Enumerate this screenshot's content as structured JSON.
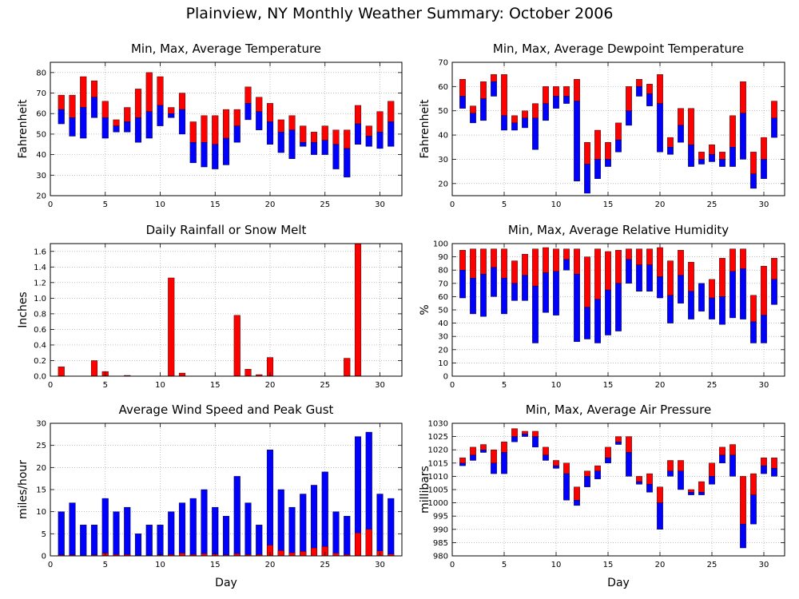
{
  "title": "Plainview, NY Monthly Weather Summary: October 2006",
  "colors": {
    "max_bar": "#ff0000",
    "min_bar": "#0000ff",
    "outline": "#000000"
  },
  "chart_data": [
    {
      "type": "bar",
      "subtype": "floating-range",
      "title": "Min, Max, Average Temperature",
      "xlabel": "",
      "ylabel": "Fahrenheit",
      "xlim": [
        0,
        32
      ],
      "ylim": [
        20,
        85
      ],
      "xticks": [
        0,
        5,
        10,
        15,
        20,
        25,
        30
      ],
      "yticks": [
        20,
        30,
        40,
        50,
        60,
        70,
        80
      ],
      "grid": true,
      "x": [
        1,
        2,
        3,
        4,
        5,
        6,
        7,
        8,
        9,
        10,
        11,
        12,
        13,
        14,
        15,
        16,
        17,
        18,
        19,
        20,
        21,
        22,
        23,
        24,
        25,
        26,
        27,
        28,
        29,
        30,
        31
      ],
      "max": [
        69,
        69,
        78,
        76,
        66,
        57,
        63,
        72,
        80,
        78,
        63,
        70,
        56,
        59,
        59,
        62,
        62,
        73,
        68,
        65,
        57,
        59,
        54,
        51,
        54,
        52,
        52,
        64,
        54,
        61,
        66
      ],
      "avg": [
        62,
        58,
        63,
        68,
        58,
        54,
        56,
        58,
        61,
        64,
        60,
        62,
        46,
        46,
        45,
        48,
        54,
        65,
        61,
        56,
        51,
        52,
        46,
        46,
        47,
        45,
        43,
        55,
        49,
        51,
        56
      ],
      "min": [
        55,
        49,
        48,
        58,
        48,
        51,
        51,
        46,
        48,
        54,
        58,
        50,
        36,
        34,
        33,
        35,
        46,
        57,
        52,
        45,
        41,
        38,
        44,
        40,
        40,
        33,
        29,
        45,
        44,
        43,
        44
      ]
    },
    {
      "type": "bar",
      "subtype": "floating-range",
      "title": "Min, Max, Average Dewpoint Temperature",
      "xlabel": "",
      "ylabel": "Fahrenheit",
      "xlim": [
        0,
        32
      ],
      "ylim": [
        15,
        70
      ],
      "xticks": [
        0,
        5,
        10,
        15,
        20,
        25,
        30
      ],
      "yticks": [
        20,
        30,
        40,
        50,
        60,
        70
      ],
      "grid": true,
      "x": [
        1,
        2,
        3,
        4,
        5,
        6,
        7,
        8,
        9,
        10,
        11,
        12,
        13,
        14,
        15,
        16,
        17,
        18,
        19,
        20,
        21,
        22,
        23,
        24,
        25,
        26,
        27,
        28,
        29,
        30,
        31
      ],
      "max": [
        63,
        52,
        62,
        65,
        65,
        48,
        50,
        53,
        60,
        60,
        60,
        63,
        37,
        42,
        37,
        45,
        60,
        63,
        61,
        65,
        39,
        51,
        51,
        33,
        36,
        33,
        48,
        62,
        33,
        39,
        54
      ],
      "avg": [
        56,
        49,
        55,
        62,
        48,
        45,
        47,
        47,
        53,
        56,
        56,
        54,
        28,
        30,
        30,
        38,
        50,
        60,
        57,
        53,
        35,
        44,
        36,
        30,
        32,
        30,
        35,
        49,
        24,
        30,
        47
      ],
      "min": [
        51,
        45,
        46,
        56,
        42,
        42,
        43,
        34,
        46,
        51,
        53,
        21,
        16,
        22,
        27,
        33,
        44,
        56,
        52,
        33,
        32,
        37,
        27,
        28,
        29,
        27,
        27,
        30,
        18,
        22,
        39
      ]
    },
    {
      "type": "bar",
      "title": "Daily Rainfall or Snow Melt",
      "xlabel": "",
      "ylabel": "Inches",
      "xlim": [
        0,
        32
      ],
      "ylim": [
        0,
        1.7
      ],
      "xticks": [
        0,
        5,
        10,
        15,
        20,
        25,
        30
      ],
      "yticks": [
        0,
        0.2,
        0.4,
        0.6,
        0.8,
        1.0,
        1.2,
        1.4,
        1.6
      ],
      "ytick_labels": [
        "0.0",
        "0.2",
        "0.4",
        "0.6",
        "0.8",
        "1.0",
        "1.2",
        "1.4",
        "1.6"
      ],
      "grid": true,
      "x": [
        1,
        2,
        3,
        4,
        5,
        6,
        7,
        8,
        9,
        10,
        11,
        12,
        13,
        14,
        15,
        16,
        17,
        18,
        19,
        20,
        21,
        22,
        23,
        24,
        25,
        26,
        27,
        28,
        29,
        30,
        31
      ],
      "values": [
        0.12,
        0,
        0,
        0.2,
        0.06,
        0,
        0.01,
        0,
        0,
        0,
        1.26,
        0.04,
        0,
        0,
        0,
        0,
        0.78,
        0.09,
        0.02,
        0.24,
        0,
        0,
        0,
        0,
        0,
        0,
        0.23,
        1.7,
        0,
        0,
        0
      ]
    },
    {
      "type": "bar",
      "subtype": "floating-range",
      "title": "Min, Max, Average Relative Humidity",
      "xlabel": "",
      "ylabel": "%",
      "xlim": [
        0,
        32
      ],
      "ylim": [
        0,
        100
      ],
      "xticks": [
        0,
        5,
        10,
        15,
        20,
        25,
        30
      ],
      "yticks": [
        0,
        10,
        20,
        30,
        40,
        50,
        60,
        70,
        80,
        90,
        100
      ],
      "grid": true,
      "x": [
        1,
        2,
        3,
        4,
        5,
        6,
        7,
        8,
        9,
        10,
        11,
        12,
        13,
        14,
        15,
        16,
        17,
        18,
        19,
        20,
        21,
        22,
        23,
        24,
        25,
        26,
        27,
        28,
        29,
        30,
        31
      ],
      "max": [
        95,
        96,
        96,
        96,
        96,
        87,
        92,
        96,
        97,
        96,
        96,
        96,
        90,
        96,
        94,
        95,
        96,
        96,
        96,
        97,
        87,
        95,
        86,
        69,
        73,
        89,
        96,
        96,
        61,
        83,
        89
      ],
      "avg": [
        80,
        74,
        77,
        82,
        74,
        70,
        76,
        68,
        78,
        79,
        88,
        77,
        52,
        58,
        65,
        70,
        88,
        84,
        84,
        75,
        61,
        76,
        64,
        70,
        59,
        60,
        79,
        81,
        41,
        46,
        73
      ],
      "min": [
        59,
        47,
        45,
        60,
        47,
        57,
        57,
        25,
        48,
        46,
        80,
        26,
        28,
        25,
        31,
        34,
        70,
        64,
        64,
        59,
        40,
        55,
        43,
        49,
        43,
        39,
        44,
        43,
        25,
        25,
        54
      ]
    },
    {
      "type": "bar",
      "subtype": "wind",
      "title": "Average Wind Speed and Peak Gust",
      "xlabel": "Day",
      "ylabel": "miles/hour",
      "xlim": [
        0,
        32
      ],
      "ylim": [
        0,
        30
      ],
      "xticks": [
        0,
        5,
        10,
        15,
        20,
        25,
        30
      ],
      "yticks": [
        0,
        5,
        10,
        15,
        20,
        25,
        30
      ],
      "grid": true,
      "x": [
        1,
        2,
        3,
        4,
        5,
        6,
        7,
        8,
        9,
        10,
        11,
        12,
        13,
        14,
        15,
        16,
        17,
        18,
        19,
        20,
        21,
        22,
        23,
        24,
        25,
        26,
        27,
        28,
        29,
        30,
        31
      ],
      "peak_gust": [
        10,
        12,
        7,
        7,
        13,
        10,
        11,
        5,
        7,
        7,
        10,
        12,
        13,
        15,
        11,
        9,
        18,
        12,
        7,
        24,
        15,
        11,
        14,
        16,
        19,
        10,
        9,
        27,
        28,
        14,
        13
      ],
      "avg_speed": [
        0.2,
        0.2,
        0.1,
        0.2,
        0.6,
        0.3,
        0.3,
        0.1,
        0.1,
        0.2,
        0.3,
        0.6,
        0.3,
        0.5,
        0.4,
        0.2,
        0.5,
        0.3,
        0.3,
        2.4,
        1.2,
        0.7,
        1.0,
        1.8,
        2.1,
        0.6,
        0.3,
        5.2,
        6.0,
        1.1,
        0.4
      ]
    },
    {
      "type": "bar",
      "subtype": "floating-range",
      "title": "Min, Max, Average Air Pressure",
      "xlabel": "Day",
      "ylabel": "millibars",
      "xlim": [
        0,
        32
      ],
      "ylim": [
        980,
        1030
      ],
      "xticks": [
        0,
        5,
        10,
        15,
        20,
        25,
        30
      ],
      "yticks": [
        980,
        985,
        990,
        995,
        1000,
        1005,
        1010,
        1015,
        1020,
        1025,
        1030
      ],
      "grid": true,
      "x": [
        1,
        2,
        3,
        4,
        5,
        6,
        7,
        8,
        9,
        10,
        11,
        12,
        13,
        14,
        15,
        16,
        17,
        18,
        19,
        20,
        21,
        22,
        23,
        24,
        25,
        26,
        27,
        28,
        29,
        30,
        31
      ],
      "max": [
        1017,
        1021,
        1022,
        1020,
        1023,
        1028,
        1027,
        1027,
        1021,
        1016,
        1015,
        1006,
        1012,
        1014,
        1021,
        1025,
        1025,
        1010,
        1011,
        1006,
        1016,
        1016,
        1005,
        1008,
        1015,
        1021,
        1022,
        1010,
        1011,
        1017,
        1017
      ],
      "avg": [
        1015,
        1018,
        1020,
        1015,
        1019,
        1025,
        1026,
        1025,
        1018,
        1014,
        1011,
        1001,
        1010,
        1012,
        1017,
        1023,
        1019,
        1008,
        1007,
        1000,
        1012,
        1012,
        1004,
        1004,
        1010,
        1018,
        1018,
        992,
        1003,
        1014,
        1013
      ],
      "min": [
        1014,
        1016,
        1019,
        1011,
        1011,
        1023,
        1025,
        1021,
        1016,
        1013,
        1001,
        999,
        1006,
        1009,
        1015,
        1022,
        1010,
        1007,
        1004,
        990,
        1010,
        1005,
        1003,
        1003,
        1007,
        1015,
        1010,
        983,
        992,
        1011,
        1010
      ]
    }
  ]
}
